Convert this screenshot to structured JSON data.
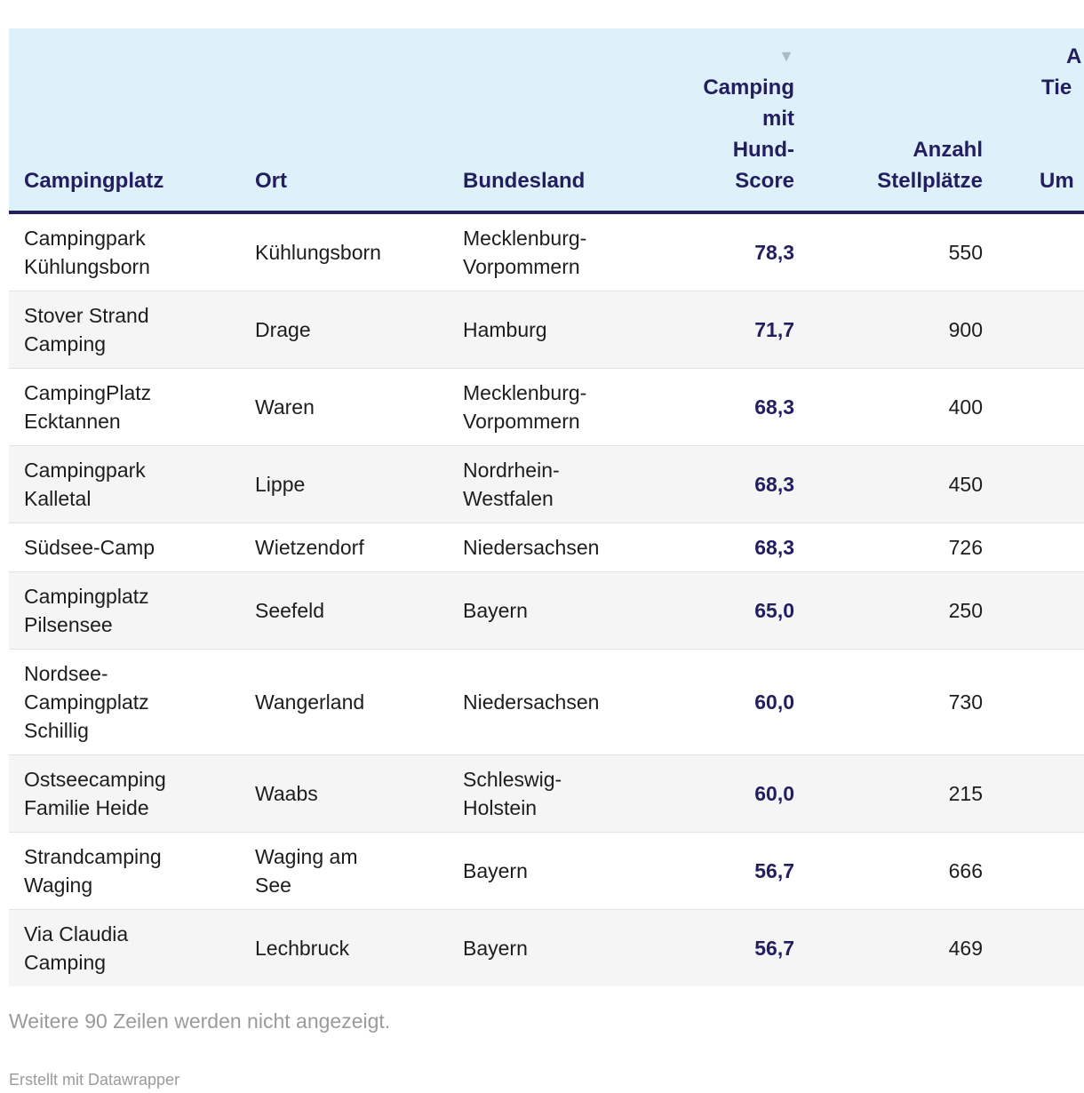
{
  "colors": {
    "header_bg": "#def1fa",
    "accent_navy": "#221e5f",
    "zebra_gray": "#f5f5f5",
    "row_divider": "#e3e3e3",
    "muted_text": "#9b9b9b",
    "sort_arrow_gray": "#a9bcc6"
  },
  "header": {
    "col1": "Campingplatz",
    "col2": "Ort",
    "col3": "Bundesland",
    "sort_icon": "▼",
    "score_lines": [
      "Camping",
      "mit",
      "Hund-",
      "Score"
    ],
    "col5_lines": [
      "Anzahl",
      "Stellplätze"
    ],
    "col6_fragments": [
      "A",
      "Tie",
      "Um"
    ]
  },
  "display_rows": [
    {
      "campingplatz": "Campingpark\nKühlungsborn",
      "ort": "Kühlungsborn",
      "bundesland": "Mecklenburg-\nVorpommern",
      "score": "78,3",
      "stellplaetze": "550"
    },
    {
      "campingplatz": "Stover Strand\nCamping",
      "ort": "Drage",
      "bundesland": "Hamburg",
      "score": "71,7",
      "stellplaetze": "900"
    },
    {
      "campingplatz": "CampingPlatz\nEcktannen",
      "ort": "Waren",
      "bundesland": "Mecklenburg-\nVorpommern",
      "score": "68,3",
      "stellplaetze": "400"
    },
    {
      "campingplatz": "Campingpark\nKalletal",
      "ort": "Lippe",
      "bundesland": "Nordrhein-\nWestfalen",
      "score": "68,3",
      "stellplaetze": "450"
    },
    {
      "campingplatz": "Südsee-Camp",
      "ort": "Wietzendorf",
      "bundesland": "Niedersachsen",
      "score": "68,3",
      "stellplaetze": "726"
    },
    {
      "campingplatz": "Campingplatz\nPilsensee",
      "ort": "Seefeld",
      "bundesland": "Bayern",
      "score": "65,0",
      "stellplaetze": "250"
    },
    {
      "campingplatz": "Nordsee-\nCampingplatz\nSchillig",
      "ort": "Wangerland",
      "bundesland": "Niedersachsen",
      "score": "60,0",
      "stellplaetze": "730"
    },
    {
      "campingplatz": "Ostseecamping\nFamilie Heide",
      "ort": "Waabs",
      "bundesland": "Schleswig-\nHolstein",
      "score": "60,0",
      "stellplaetze": "215"
    },
    {
      "campingplatz": "Strandcamping\nWaging",
      "ort": "Waging am\nSee",
      "bundesland": "Bayern",
      "score": "56,7",
      "stellplaetze": "666"
    },
    {
      "campingplatz": "Via Claudia\nCamping",
      "ort": "Lechbruck",
      "bundesland": "Bayern",
      "score": "56,7",
      "stellplaetze": "469"
    }
  ],
  "footer": {
    "more_note": "Weitere 90 Zeilen werden nicht angezeigt.",
    "attribution": "Erstellt mit Datawrapper"
  },
  "chart_data": {
    "type": "table",
    "columns": [
      "Campingplatz",
      "Ort",
      "Bundesland",
      "Camping mit Hund-Score",
      "Anzahl Stellplätze"
    ],
    "rows": [
      [
        "Campingpark Kühlungsborn",
        "Kühlungsborn",
        "Mecklenburg-Vorpommern",
        "78,3",
        "550"
      ],
      [
        "Stover Strand Camping",
        "Drage",
        "Hamburg",
        "71,7",
        "900"
      ],
      [
        "CampingPlatz Ecktannen",
        "Waren",
        "Mecklenburg-Vorpommern",
        "68,3",
        "400"
      ],
      [
        "Campingpark Kalletal",
        "Lippe",
        "Nordrhein-Westfalen",
        "68,3",
        "450"
      ],
      [
        "Südsee-Camp",
        "Wietzendorf",
        "Niedersachsen",
        "68,3",
        "726"
      ],
      [
        "Campingplatz Pilsensee",
        "Seefeld",
        "Bayern",
        "65,0",
        "250"
      ],
      [
        "Nordsee-Campingplatz Schillig",
        "Wangerland",
        "Niedersachsen",
        "60,0",
        "730"
      ],
      [
        "Ostseecamping Familie Heide",
        "Waabs",
        "Schleswig-Holstein",
        "60,0",
        "215"
      ],
      [
        "Strandcamping Waging",
        "Waging am See",
        "Bayern",
        "56,7",
        "666"
      ],
      [
        "Via Claudia Camping",
        "Lechbruck",
        "Bayern",
        "56,7",
        "469"
      ]
    ],
    "sort": {
      "column": "Camping mit Hund-Score",
      "direction": "desc"
    },
    "note": "Weitere 90 Zeilen werden nicht angezeigt.",
    "attribution": "Erstellt mit Datawrapper"
  }
}
